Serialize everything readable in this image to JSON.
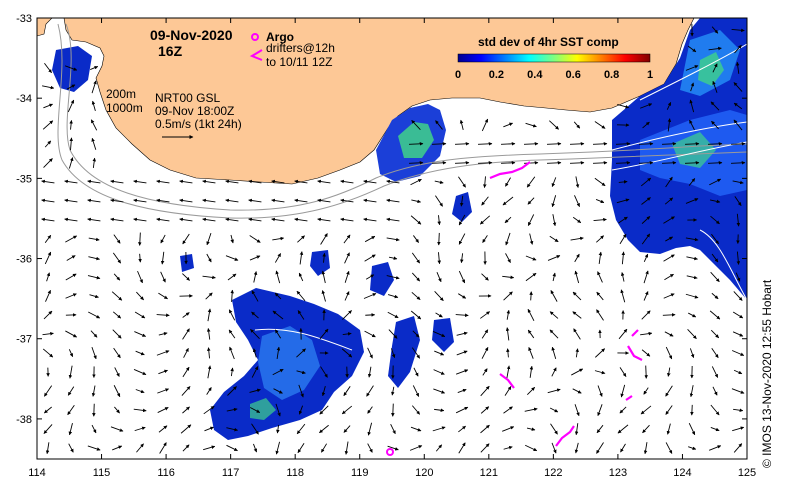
{
  "map": {
    "longitudes": [
      "114",
      "115",
      "116",
      "117",
      "118",
      "119",
      "120",
      "121",
      "122",
      "123",
      "124",
      "125"
    ],
    "latitudes": [
      "-33",
      "-34",
      "-35",
      "-36",
      "-37",
      "-38"
    ],
    "lon_range": [
      114,
      125
    ],
    "lat_range": [
      -38.5,
      -33
    ],
    "land_color": "#fdc896",
    "water_color": "#ffffff"
  },
  "header": {
    "date": "09-Nov-2020",
    "hour": "16Z"
  },
  "legend_markers": {
    "argo_label": "Argo",
    "drifters_label": "drifters@12h",
    "drifters_to": "to 10/11 12Z",
    "marker_color": "#ff00ff"
  },
  "annotations": {
    "contour_200": "200m",
    "contour_1000": "1000m",
    "model_name": "NRT00 GSL",
    "model_time": "09-Nov 18:00Z",
    "scale_arrow": "0.5m/s (1kt 24h)"
  },
  "colorbar": {
    "title": "std dev of 4hr SST comp",
    "ticks": [
      "0",
      "0.2",
      "0.4",
      "0.6",
      "0.8",
      "1"
    ],
    "range": [
      0,
      1
    ]
  },
  "credit": "©  IMOS 13-Nov-2020 12:55 Hobart"
}
